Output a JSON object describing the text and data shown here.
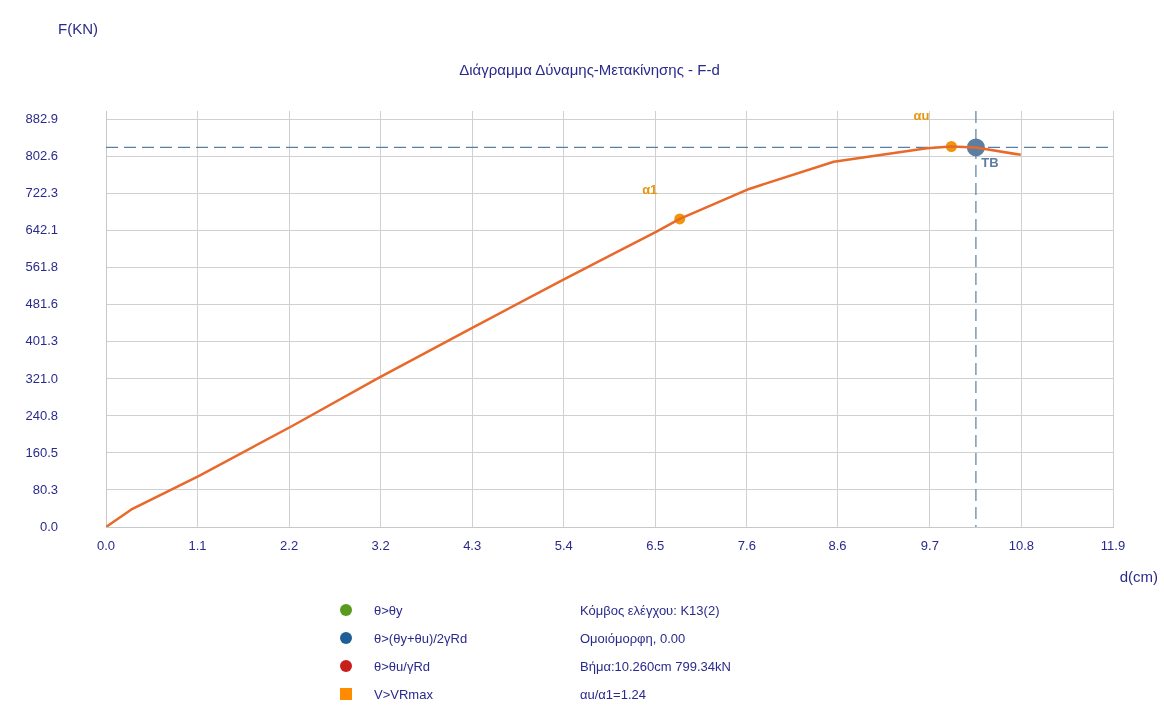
{
  "chart_data": {
    "type": "line",
    "title": "Διάγραμμα Δύναμης-Μετακίνησης - F-d",
    "xlabel": "d(cm)",
    "ylabel": "F(KN)",
    "xlim": [
      0,
      11.9
    ],
    "ylim": [
      0,
      902
    ],
    "xticks": [
      {
        "value": 0,
        "label": "0.0"
      },
      {
        "value": 1.082,
        "label": "1.1"
      },
      {
        "value": 2.164,
        "label": "2.2"
      },
      {
        "value": 3.245,
        "label": "3.2"
      },
      {
        "value": 4.327,
        "label": "4.3"
      },
      {
        "value": 5.409,
        "label": "5.4"
      },
      {
        "value": 6.491,
        "label": "6.5"
      },
      {
        "value": 7.573,
        "label": "7.6"
      },
      {
        "value": 8.645,
        "label": "8.6"
      },
      {
        "value": 9.736,
        "label": "9.7"
      },
      {
        "value": 10.818,
        "label": "10.8"
      },
      {
        "value": 11.9,
        "label": "11.9"
      }
    ],
    "yticks": [
      {
        "value": 0,
        "label": "0.0"
      },
      {
        "value": 80.26,
        "label": "80.3"
      },
      {
        "value": 160.53,
        "label": "160.5"
      },
      {
        "value": 240.79,
        "label": "240.8"
      },
      {
        "value": 321.05,
        "label": "321.0"
      },
      {
        "value": 401.32,
        "label": "401.3"
      },
      {
        "value": 481.58,
        "label": "481.6"
      },
      {
        "value": 561.84,
        "label": "561.8"
      },
      {
        "value": 642.1,
        "label": "642.1"
      },
      {
        "value": 722.33,
        "label": "722.3"
      },
      {
        "value": 802.63,
        "label": "802.6"
      },
      {
        "value": 882.9,
        "label": "882.9"
      }
    ],
    "grid": true,
    "legend": "bottom",
    "series": [
      {
        "color": "#e8692a",
        "marker": "none",
        "x": [
          0,
          0.3,
          1.1,
          2.2,
          3.2,
          4.3,
          5.4,
          6.5,
          6.78,
          7.6,
          8.6,
          9.7,
          9.99,
          10.28,
          10.81
        ],
        "values": [
          0,
          38,
          111,
          219,
          321,
          429,
          536,
          640,
          668,
          733,
          792,
          821,
          825,
          823,
          807
        ]
      },
      {
        "type": "scatter",
        "color": "#f0960a",
        "marker": "circle",
        "x": [
          6.78,
          9.99
        ],
        "values": [
          668,
          825
        ]
      },
      {
        "type": "scatter",
        "color": "#5b7fa0",
        "marker": "circle",
        "x": [
          10.28
        ],
        "values": [
          823
        ]
      },
      {
        "type": "scatter",
        "name": "θ>θy",
        "color": "#5a9a1e",
        "marker": "circle"
      },
      {
        "type": "scatter",
        "name": "θ>(θy+θu)/2γRd",
        "color": "#1f5f96",
        "marker": "circle"
      },
      {
        "type": "scatter",
        "name": "θ>θu/γRd",
        "color": "#c81e1e",
        "marker": "circle"
      },
      {
        "type": "scatter",
        "name": "V>VRmax",
        "color": "#ff8c00",
        "marker": "square"
      }
    ],
    "ref_lines": [
      {
        "axis": "y",
        "value": 823,
        "color": "#5b7fa0",
        "line_style": "dashed"
      },
      {
        "axis": "x",
        "value": 10.28,
        "color": "#5b7fa0",
        "line_style": "dashed"
      }
    ],
    "annotations": [
      {
        "text": "α1",
        "x": 6.78,
        "y": 668
      },
      {
        "text": "αu",
        "x": 9.99,
        "y": 825
      },
      {
        "text": "TB",
        "x": 10.28,
        "y": 823
      },
      "Κόμβος ελέγχου: K13(2)",
      "Ομοιόμορφη, 0.00",
      "Βήμα:10.260cm 799.34kN",
      "αu/α1=1.24"
    ]
  }
}
